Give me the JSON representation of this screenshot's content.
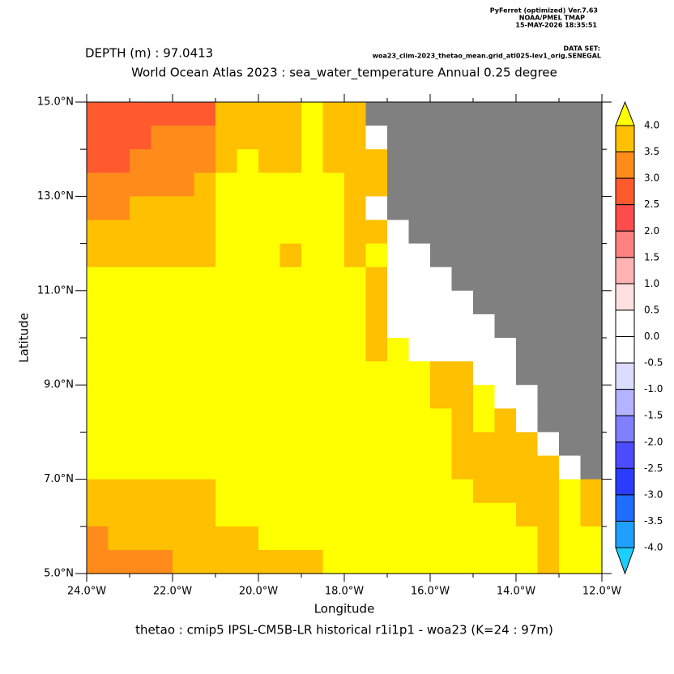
{
  "header": {
    "software": "PyFerret (optimized) Ver.7.63",
    "lab": "NOAA/PMEL TMAP",
    "timestamp": "15-MAY-2026 18:35:51",
    "dataset_label": "DATA SET:",
    "dataset": "woa23_clim-2023_thetao_mean.grid_atl025-lev1_orig.SENEGAL"
  },
  "chart_data": {
    "type": "heatmap",
    "subtitle": "DEPTH (m) : 97.0413",
    "title": "World Ocean Atlas 2023 : sea_water_temperature Annual  0.25 degree",
    "x_label": "Longitude",
    "y_label": "Latitude",
    "footer": "thetao : cmip5 IPSL-CM5B-LR historical r1i1p1 - woa23  (K=24 : 97m)",
    "xlim": [
      -24,
      -12
    ],
    "ylim": [
      5,
      15
    ],
    "xticks": [
      {
        "value": -24,
        "label": "24.0°W"
      },
      {
        "value": -22,
        "label": "22.0°W"
      },
      {
        "value": -20,
        "label": "20.0°W"
      },
      {
        "value": -18,
        "label": "18.0°W"
      },
      {
        "value": -16,
        "label": "16.0°W"
      },
      {
        "value": -14,
        "label": "14.0°W"
      },
      {
        "value": -12,
        "label": "12.0°W"
      }
    ],
    "xminorticks": [
      -23,
      -21,
      -19,
      -17,
      -15,
      -13
    ],
    "yticks": [
      {
        "value": 5,
        "label": "5.0°N"
      },
      {
        "value": 7,
        "label": "7.0°N"
      },
      {
        "value": 9,
        "label": "9.0°N"
      },
      {
        "value": 11,
        "label": "11.0°N"
      },
      {
        "value": 13,
        "label": "13.0°N"
      },
      {
        "value": 15,
        "label": "15.0°N"
      }
    ],
    "yminorticks": [
      6,
      8,
      10,
      12,
      14
    ],
    "missing_color": "#808080",
    "colorbar_ticks": [
      {
        "value": 4,
        "label": "4.0"
      },
      {
        "value": 3.5,
        "label": "3.5"
      },
      {
        "value": 3,
        "label": "3.0"
      },
      {
        "value": 2.5,
        "label": "2.5"
      },
      {
        "value": 2,
        "label": "2.0"
      },
      {
        "value": 1.5,
        "label": "1.5"
      },
      {
        "value": 1,
        "label": "1.0"
      },
      {
        "value": 0.5,
        "label": "0.5"
      },
      {
        "value": 0,
        "label": "0.0"
      },
      {
        "value": -0.5,
        "label": "-0.5"
      },
      {
        "value": -1,
        "label": "-1.0"
      },
      {
        "value": -1.5,
        "label": "-1.5"
      },
      {
        "value": -2,
        "label": "-2.0"
      },
      {
        "value": -2.5,
        "label": "-2.5"
      },
      {
        "value": -3,
        "label": "-3.0"
      },
      {
        "value": -3.5,
        "label": "-3.5"
      },
      {
        "value": -4,
        "label": "-4.0"
      }
    ],
    "colorbar_colors": [
      "#ffff00",
      "#ffc000",
      "#ff8c1a",
      "#ff5a2e",
      "#ff4c4c",
      "#ff8080",
      "#ffb3b3",
      "#ffe0e0",
      "#ffffff",
      "#ffffff",
      "#dcdcff",
      "#b3b3ff",
      "#8080ff",
      "#4c4cff",
      "#2a3cff",
      "#1f6cff",
      "#1fa0ff",
      "#1acfff"
    ],
    "z": [
      [
        2.7,
        2.7,
        2.7,
        2.7,
        2.7,
        2.7,
        3.7,
        3.7,
        3.7,
        3.7,
        4.5,
        3.7,
        3.7,
        null,
        null,
        null,
        null,
        null,
        null,
        null,
        null,
        null,
        null,
        null
      ],
      [
        2.7,
        2.7,
        2.7,
        3.2,
        3.2,
        3.2,
        3.7,
        3.7,
        3.7,
        3.7,
        4.5,
        3.7,
        3.7,
        0.2,
        null,
        null,
        null,
        null,
        null,
        null,
        null,
        null,
        null,
        null
      ],
      [
        2.7,
        2.7,
        3.2,
        3.2,
        3.2,
        3.2,
        3.7,
        4.5,
        3.7,
        3.7,
        4.5,
        3.7,
        3.7,
        3.7,
        null,
        null,
        null,
        null,
        null,
        null,
        null,
        null,
        null,
        null
      ],
      [
        3.2,
        3.2,
        3.2,
        3.2,
        3.2,
        3.7,
        4.5,
        4.5,
        4.5,
        4.5,
        4.5,
        4.5,
        3.7,
        3.7,
        null,
        null,
        null,
        null,
        null,
        null,
        null,
        null,
        null,
        null
      ],
      [
        3.2,
        3.2,
        3.7,
        3.7,
        3.7,
        3.7,
        4.5,
        4.5,
        4.5,
        4.5,
        4.5,
        4.5,
        3.7,
        0.2,
        null,
        null,
        null,
        null,
        null,
        null,
        null,
        null,
        null,
        null
      ],
      [
        3.7,
        3.7,
        3.7,
        3.7,
        3.7,
        3.7,
        4.5,
        4.5,
        4.5,
        4.5,
        4.5,
        4.5,
        3.7,
        3.7,
        0.2,
        null,
        null,
        null,
        null,
        null,
        null,
        null,
        null,
        null
      ],
      [
        3.7,
        3.7,
        3.7,
        3.7,
        3.7,
        3.7,
        4.5,
        4.5,
        4.5,
        3.7,
        4.5,
        4.5,
        3.7,
        4.5,
        0.2,
        0.2,
        null,
        null,
        null,
        null,
        null,
        null,
        null,
        null
      ],
      [
        4.5,
        4.5,
        4.5,
        4.5,
        4.5,
        4.5,
        4.5,
        4.5,
        4.5,
        4.5,
        4.5,
        4.5,
        4.5,
        3.7,
        0.2,
        0.2,
        0.2,
        null,
        null,
        null,
        null,
        null,
        null,
        null
      ],
      [
        4.5,
        4.5,
        4.5,
        4.5,
        4.5,
        4.5,
        4.5,
        4.5,
        4.5,
        4.5,
        4.5,
        4.5,
        4.5,
        3.7,
        0.2,
        0.2,
        0.2,
        0.2,
        null,
        null,
        null,
        null,
        null,
        null
      ],
      [
        4.5,
        4.5,
        4.5,
        4.5,
        4.5,
        4.5,
        4.5,
        4.5,
        4.5,
        4.5,
        4.5,
        4.5,
        4.5,
        3.7,
        0.2,
        0.2,
        0.2,
        0.2,
        0.2,
        null,
        null,
        null,
        null,
        null
      ],
      [
        4.5,
        4.5,
        4.5,
        4.5,
        4.5,
        4.5,
        4.5,
        4.5,
        4.5,
        4.5,
        4.5,
        4.5,
        4.5,
        3.7,
        4.5,
        0.2,
        0.2,
        0.2,
        0.2,
        0.2,
        null,
        null,
        null,
        null
      ],
      [
        4.5,
        4.5,
        4.5,
        4.5,
        4.5,
        4.5,
        4.5,
        4.5,
        4.5,
        4.5,
        4.5,
        4.5,
        4.5,
        4.5,
        4.5,
        4.5,
        3.7,
        3.7,
        0.2,
        0.2,
        null,
        null,
        null,
        null
      ],
      [
        4.5,
        4.5,
        4.5,
        4.5,
        4.5,
        4.5,
        4.5,
        4.5,
        4.5,
        4.5,
        4.5,
        4.5,
        4.5,
        4.5,
        4.5,
        4.5,
        3.7,
        3.7,
        4.5,
        0.2,
        0.2,
        null,
        null,
        null
      ],
      [
        4.5,
        4.5,
        4.5,
        4.5,
        4.5,
        4.5,
        4.5,
        4.5,
        4.5,
        4.5,
        4.5,
        4.5,
        4.5,
        4.5,
        4.5,
        4.5,
        4.5,
        3.7,
        4.5,
        3.7,
        0.2,
        null,
        null,
        null
      ],
      [
        4.5,
        4.5,
        4.5,
        4.5,
        4.5,
        4.5,
        4.5,
        4.5,
        4.5,
        4.5,
        4.5,
        4.5,
        4.5,
        4.5,
        4.5,
        4.5,
        4.5,
        3.7,
        3.7,
        3.7,
        3.7,
        0.2,
        null,
        null
      ],
      [
        4.5,
        4.5,
        4.5,
        4.5,
        4.5,
        4.5,
        4.5,
        4.5,
        4.5,
        4.5,
        4.5,
        4.5,
        4.5,
        4.5,
        4.5,
        4.5,
        4.5,
        3.7,
        3.7,
        3.7,
        3.7,
        3.7,
        0.2,
        null
      ],
      [
        3.7,
        3.7,
        3.7,
        3.7,
        3.7,
        3.7,
        4.5,
        4.5,
        4.5,
        4.5,
        4.5,
        4.5,
        4.5,
        4.5,
        4.5,
        4.5,
        4.5,
        4.5,
        3.7,
        3.7,
        3.7,
        3.7,
        4.5,
        3.7
      ],
      [
        3.7,
        3.7,
        3.7,
        3.7,
        3.7,
        3.7,
        4.5,
        4.5,
        4.5,
        4.5,
        4.5,
        4.5,
        4.5,
        4.5,
        4.5,
        4.5,
        4.5,
        4.5,
        4.5,
        4.5,
        3.7,
        3.7,
        4.5,
        3.7
      ],
      [
        3.2,
        3.7,
        3.7,
        3.7,
        3.7,
        3.7,
        3.7,
        3.7,
        4.5,
        4.5,
        4.5,
        4.5,
        4.5,
        4.5,
        4.5,
        4.5,
        4.5,
        4.5,
        4.5,
        4.5,
        4.5,
        3.7,
        4.5,
        4.5
      ],
      [
        3.2,
        3.2,
        3.2,
        3.2,
        3.7,
        3.7,
        3.7,
        3.7,
        3.7,
        3.7,
        3.7,
        4.5,
        4.5,
        4.5,
        4.5,
        4.5,
        4.5,
        4.5,
        4.5,
        4.5,
        4.5,
        3.7,
        4.5,
        4.5
      ]
    ]
  }
}
